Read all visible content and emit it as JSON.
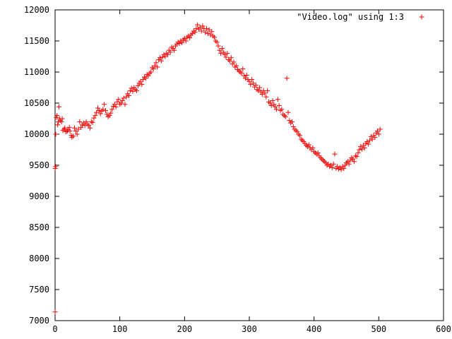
{
  "chart_data": {
    "type": "scatter",
    "title": "",
    "xlabel": "",
    "ylabel": "",
    "xlim": [
      0,
      600
    ],
    "ylim": [
      7000,
      12000
    ],
    "xticks": [
      0,
      100,
      200,
      300,
      400,
      500,
      600
    ],
    "yticks": [
      7000,
      7500,
      8000,
      8500,
      9000,
      9500,
      10000,
      10500,
      11000,
      11500,
      12000
    ],
    "grid": false,
    "legend": {
      "placement": "top-right"
    },
    "series": [
      {
        "name": "\"Video.log\" using 1:3",
        "color": "#ff0000",
        "marker": "plus",
        "points": [
          [
            0,
            7140
          ],
          [
            0,
            9450
          ],
          [
            1,
            9480
          ],
          [
            1,
            10000
          ],
          [
            2,
            10270
          ],
          [
            3,
            10300
          ],
          [
            4,
            10150
          ],
          [
            5,
            10200
          ],
          [
            6,
            10440
          ],
          [
            7,
            10250
          ],
          [
            8,
            10220
          ],
          [
            10,
            10200
          ],
          [
            11,
            10250
          ],
          [
            12,
            10060
          ],
          [
            14,
            10080
          ],
          [
            15,
            10100
          ],
          [
            17,
            10040
          ],
          [
            19,
            10050
          ],
          [
            20,
            10070
          ],
          [
            22,
            10110
          ],
          [
            23,
            10050
          ],
          [
            25,
            9980
          ],
          [
            26,
            9950
          ],
          [
            28,
            9970
          ],
          [
            30,
            10100
          ],
          [
            32,
            10050
          ],
          [
            34,
            10000
          ],
          [
            36,
            10080
          ],
          [
            38,
            10200
          ],
          [
            40,
            10110
          ],
          [
            42,
            10150
          ],
          [
            44,
            10180
          ],
          [
            46,
            10140
          ],
          [
            48,
            10200
          ],
          [
            50,
            10160
          ],
          [
            52,
            10140
          ],
          [
            54,
            10100
          ],
          [
            56,
            10200
          ],
          [
            58,
            10190
          ],
          [
            60,
            10260
          ],
          [
            62,
            10300
          ],
          [
            64,
            10350
          ],
          [
            66,
            10420
          ],
          [
            68,
            10380
          ],
          [
            70,
            10330
          ],
          [
            72,
            10370
          ],
          [
            74,
            10400
          ],
          [
            76,
            10480
          ],
          [
            78,
            10380
          ],
          [
            80,
            10320
          ],
          [
            82,
            10280
          ],
          [
            84,
            10300
          ],
          [
            86,
            10340
          ],
          [
            88,
            10400
          ],
          [
            90,
            10450
          ],
          [
            92,
            10480
          ],
          [
            94,
            10440
          ],
          [
            96,
            10520
          ],
          [
            98,
            10560
          ],
          [
            100,
            10480
          ],
          [
            102,
            10500
          ],
          [
            104,
            10540
          ],
          [
            106,
            10580
          ],
          [
            108,
            10480
          ],
          [
            110,
            10600
          ],
          [
            112,
            10650
          ],
          [
            114,
            10620
          ],
          [
            116,
            10700
          ],
          [
            118,
            10740
          ],
          [
            120,
            10690
          ],
          [
            122,
            10750
          ],
          [
            124,
            10720
          ],
          [
            126,
            10700
          ],
          [
            128,
            10780
          ],
          [
            130,
            10820
          ],
          [
            132,
            10850
          ],
          [
            134,
            10800
          ],
          [
            136,
            10880
          ],
          [
            138,
            10920
          ],
          [
            140,
            10900
          ],
          [
            142,
            10960
          ],
          [
            144,
            10940
          ],
          [
            146,
            10980
          ],
          [
            148,
            11000
          ],
          [
            150,
            11070
          ],
          [
            152,
            11050
          ],
          [
            154,
            11100
          ],
          [
            156,
            11150
          ],
          [
            158,
            11080
          ],
          [
            160,
            11200
          ],
          [
            162,
            11230
          ],
          [
            164,
            11180
          ],
          [
            166,
            11240
          ],
          [
            168,
            11280
          ],
          [
            170,
            11250
          ],
          [
            172,
            11300
          ],
          [
            174,
            11280
          ],
          [
            176,
            11350
          ],
          [
            178,
            11320
          ],
          [
            180,
            11400
          ],
          [
            182,
            11380
          ],
          [
            184,
            11350
          ],
          [
            186,
            11420
          ],
          [
            188,
            11450
          ],
          [
            190,
            11480
          ],
          [
            192,
            11460
          ],
          [
            194,
            11500
          ],
          [
            196,
            11470
          ],
          [
            198,
            11520
          ],
          [
            200,
            11540
          ],
          [
            202,
            11500
          ],
          [
            204,
            11560
          ],
          [
            206,
            11580
          ],
          [
            208,
            11550
          ],
          [
            210,
            11600
          ],
          [
            212,
            11620
          ],
          [
            214,
            11660
          ],
          [
            216,
            11640
          ],
          [
            218,
            11700
          ],
          [
            220,
            11760
          ],
          [
            222,
            11690
          ],
          [
            224,
            11720
          ],
          [
            226,
            11660
          ],
          [
            228,
            11740
          ],
          [
            230,
            11700
          ],
          [
            232,
            11640
          ],
          [
            234,
            11700
          ],
          [
            236,
            11620
          ],
          [
            238,
            11680
          ],
          [
            240,
            11600
          ],
          [
            242,
            11650
          ],
          [
            244,
            11580
          ],
          [
            246,
            11560
          ],
          [
            248,
            11500
          ],
          [
            250,
            11480
          ],
          [
            252,
            11420
          ],
          [
            254,
            11350
          ],
          [
            256,
            11300
          ],
          [
            258,
            11380
          ],
          [
            260,
            11320
          ],
          [
            262,
            11280
          ],
          [
            264,
            11240
          ],
          [
            266,
            11300
          ],
          [
            268,
            11200
          ],
          [
            270,
            11180
          ],
          [
            272,
            11230
          ],
          [
            274,
            11130
          ],
          [
            276,
            11160
          ],
          [
            278,
            11080
          ],
          [
            280,
            11100
          ],
          [
            282,
            11040
          ],
          [
            284,
            11020
          ],
          [
            286,
            11000
          ],
          [
            288,
            10980
          ],
          [
            290,
            11050
          ],
          [
            292,
            10940
          ],
          [
            294,
            10900
          ],
          [
            296,
            10950
          ],
          [
            298,
            10880
          ],
          [
            300,
            10850
          ],
          [
            302,
            10800
          ],
          [
            304,
            10880
          ],
          [
            306,
            10820
          ],
          [
            308,
            10760
          ],
          [
            310,
            10790
          ],
          [
            312,
            10720
          ],
          [
            314,
            10700
          ],
          [
            316,
            10750
          ],
          [
            318,
            10680
          ],
          [
            320,
            10640
          ],
          [
            322,
            10700
          ],
          [
            324,
            10660
          ],
          [
            326,
            10600
          ],
          [
            328,
            10700
          ],
          [
            330,
            10520
          ],
          [
            332,
            10500
          ],
          [
            334,
            10460
          ],
          [
            336,
            10540
          ],
          [
            338,
            10480
          ],
          [
            340,
            10440
          ],
          [
            342,
            10400
          ],
          [
            344,
            10560
          ],
          [
            346,
            10460
          ],
          [
            348,
            10380
          ],
          [
            350,
            10400
          ],
          [
            352,
            10320
          ],
          [
            354,
            10300
          ],
          [
            356,
            10280
          ],
          [
            358,
            10900
          ],
          [
            360,
            10350
          ],
          [
            362,
            10220
          ],
          [
            364,
            10180
          ],
          [
            366,
            10200
          ],
          [
            368,
            10120
          ],
          [
            370,
            10080
          ],
          [
            372,
            10060
          ],
          [
            374,
            10040
          ],
          [
            376,
            10000
          ],
          [
            378,
            9980
          ],
          [
            380,
            9920
          ],
          [
            382,
            9900
          ],
          [
            384,
            9880
          ],
          [
            386,
            9850
          ],
          [
            388,
            9820
          ],
          [
            390,
            9800
          ],
          [
            392,
            9830
          ],
          [
            394,
            9780
          ],
          [
            396,
            9750
          ],
          [
            398,
            9780
          ],
          [
            400,
            9720
          ],
          [
            402,
            9700
          ],
          [
            404,
            9680
          ],
          [
            406,
            9700
          ],
          [
            408,
            9650
          ],
          [
            410,
            9620
          ],
          [
            412,
            9600
          ],
          [
            414,
            9580
          ],
          [
            416,
            9560
          ],
          [
            418,
            9540
          ],
          [
            420,
            9500
          ],
          [
            422,
            9520
          ],
          [
            424,
            9480
          ],
          [
            426,
            9500
          ],
          [
            428,
            9460
          ],
          [
            430,
            9520
          ],
          [
            432,
            9680
          ],
          [
            434,
            9450
          ],
          [
            436,
            9480
          ],
          [
            438,
            9440
          ],
          [
            440,
            9460
          ],
          [
            442,
            9430
          ],
          [
            444,
            9480
          ],
          [
            446,
            9450
          ],
          [
            448,
            9500
          ],
          [
            450,
            9540
          ],
          [
            452,
            9560
          ],
          [
            454,
            9520
          ],
          [
            456,
            9580
          ],
          [
            458,
            9620
          ],
          [
            460,
            9600
          ],
          [
            462,
            9560
          ],
          [
            464,
            9650
          ],
          [
            466,
            9640
          ],
          [
            468,
            9700
          ],
          [
            470,
            9750
          ],
          [
            472,
            9800
          ],
          [
            474,
            9760
          ],
          [
            476,
            9820
          ],
          [
            478,
            9780
          ],
          [
            480,
            9850
          ],
          [
            482,
            9880
          ],
          [
            484,
            9840
          ],
          [
            486,
            9900
          ],
          [
            488,
            9960
          ],
          [
            490,
            9920
          ],
          [
            492,
            9980
          ],
          [
            494,
            9950
          ],
          [
            496,
            10020
          ],
          [
            498,
            10050
          ],
          [
            500,
            10000
          ],
          [
            502,
            10080
          ]
        ]
      }
    ]
  }
}
